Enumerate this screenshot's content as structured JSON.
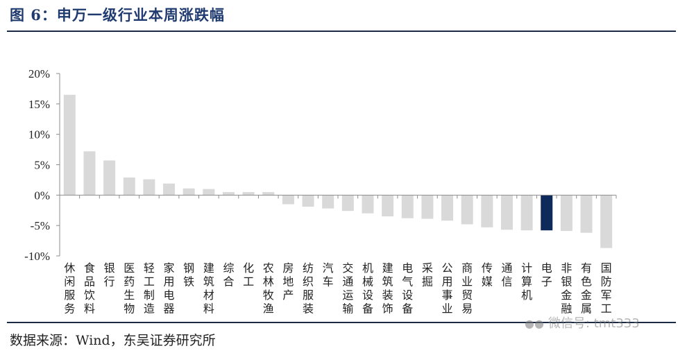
{
  "figure": {
    "title": "图 6：申万一级行业本周涨跌幅",
    "source": "数据来源：Wind，东吴证券研究所",
    "watermark": "微信号: tmt333",
    "watermark_icon": "wechat-icon"
  },
  "chart_data": {
    "type": "bar",
    "title": "",
    "xlabel": "",
    "ylabel": "",
    "ylim": [
      -10,
      20
    ],
    "y_ticks": [
      20,
      15,
      10,
      5,
      0,
      -5,
      -10
    ],
    "y_tick_labels": [
      "20%",
      "15%",
      "10%",
      "5%",
      "0%",
      "-5%",
      "-10%"
    ],
    "grid": false,
    "legend": "none",
    "categories": [
      "休闲服务",
      "食品饮料",
      "银行",
      "医药生物",
      "轻工制造",
      "家用电器",
      "钢铁",
      "建筑材料",
      "综合",
      "化工",
      "农林牧渔",
      "房地产",
      "纺织服装",
      "汽车",
      "交通运输",
      "机械设备",
      "建筑装饰",
      "电气设备",
      "采掘",
      "公用事业",
      "商业贸易",
      "传媒",
      "通信",
      "计算机",
      "电子",
      "非银金融",
      "有色金属",
      "国防军工"
    ],
    "values": [
      16.5,
      7.2,
      5.7,
      2.9,
      2.6,
      1.9,
      1.1,
      1.0,
      0.5,
      0.5,
      0.5,
      -1.5,
      -1.9,
      -2.2,
      -2.6,
      -3.0,
      -3.5,
      -3.8,
      -3.9,
      -4.2,
      -4.8,
      -5.3,
      -5.7,
      -5.8,
      -5.8,
      -5.9,
      -6.2,
      -8.7
    ],
    "highlight": "电子",
    "colors": {
      "default": "#d9d9d9",
      "highlight": "#0e2a5a",
      "axis": "#8c8c8c"
    }
  }
}
